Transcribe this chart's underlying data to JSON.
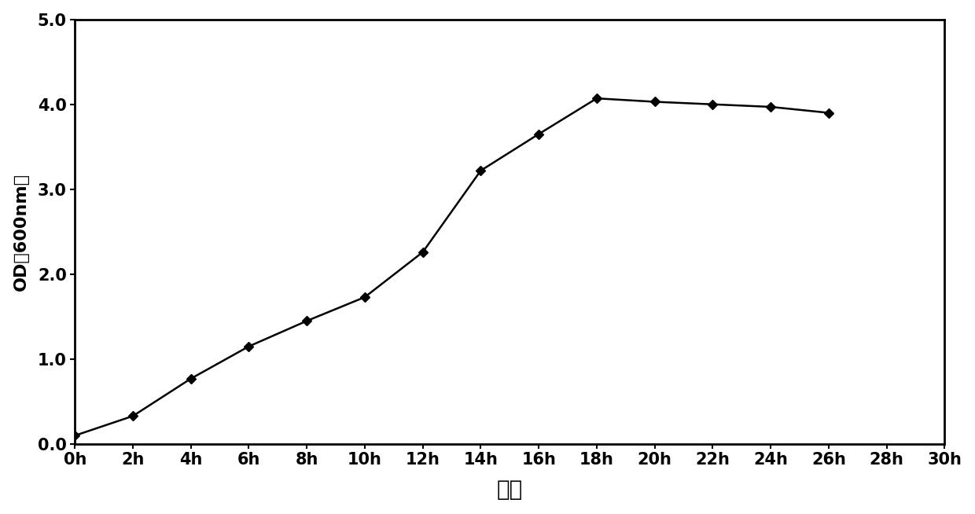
{
  "x": [
    0,
    2,
    4,
    6,
    8,
    10,
    12,
    14,
    16,
    18,
    20,
    22,
    24,
    26
  ],
  "y": [
    0.1,
    0.33,
    0.77,
    1.15,
    1.45,
    1.73,
    2.26,
    3.22,
    3.65,
    4.07,
    4.03,
    4.0,
    3.97,
    3.9
  ],
  "xlabel": "时间",
  "ylabel": "OD（600nm）",
  "xlim": [
    0,
    30
  ],
  "ylim": [
    0.0,
    5.0
  ],
  "xtick_values": [
    0,
    2,
    4,
    6,
    8,
    10,
    12,
    14,
    16,
    18,
    20,
    22,
    24,
    26,
    28,
    30
  ],
  "xtick_labels": [
    "0h",
    "2h",
    "4h",
    "6h",
    "8h",
    "10h",
    "12h",
    "14h",
    "16h",
    "18h",
    "20h",
    "22h",
    "24h",
    "26h",
    "28h",
    "30h"
  ],
  "ytick_values": [
    0.0,
    1.0,
    2.0,
    3.0,
    4.0,
    5.0
  ],
  "ytick_labels": [
    "0.0",
    "1.0",
    "2.0",
    "3.0",
    "4.0",
    "5.0"
  ],
  "line_color": "#000000",
  "marker": "D",
  "marker_size": 6,
  "line_width": 1.8,
  "background_color": "#ffffff",
  "xlabel_fontsize": 20,
  "ylabel_fontsize": 16,
  "tick_fontsize": 15,
  "spine_linewidth": 2.0
}
